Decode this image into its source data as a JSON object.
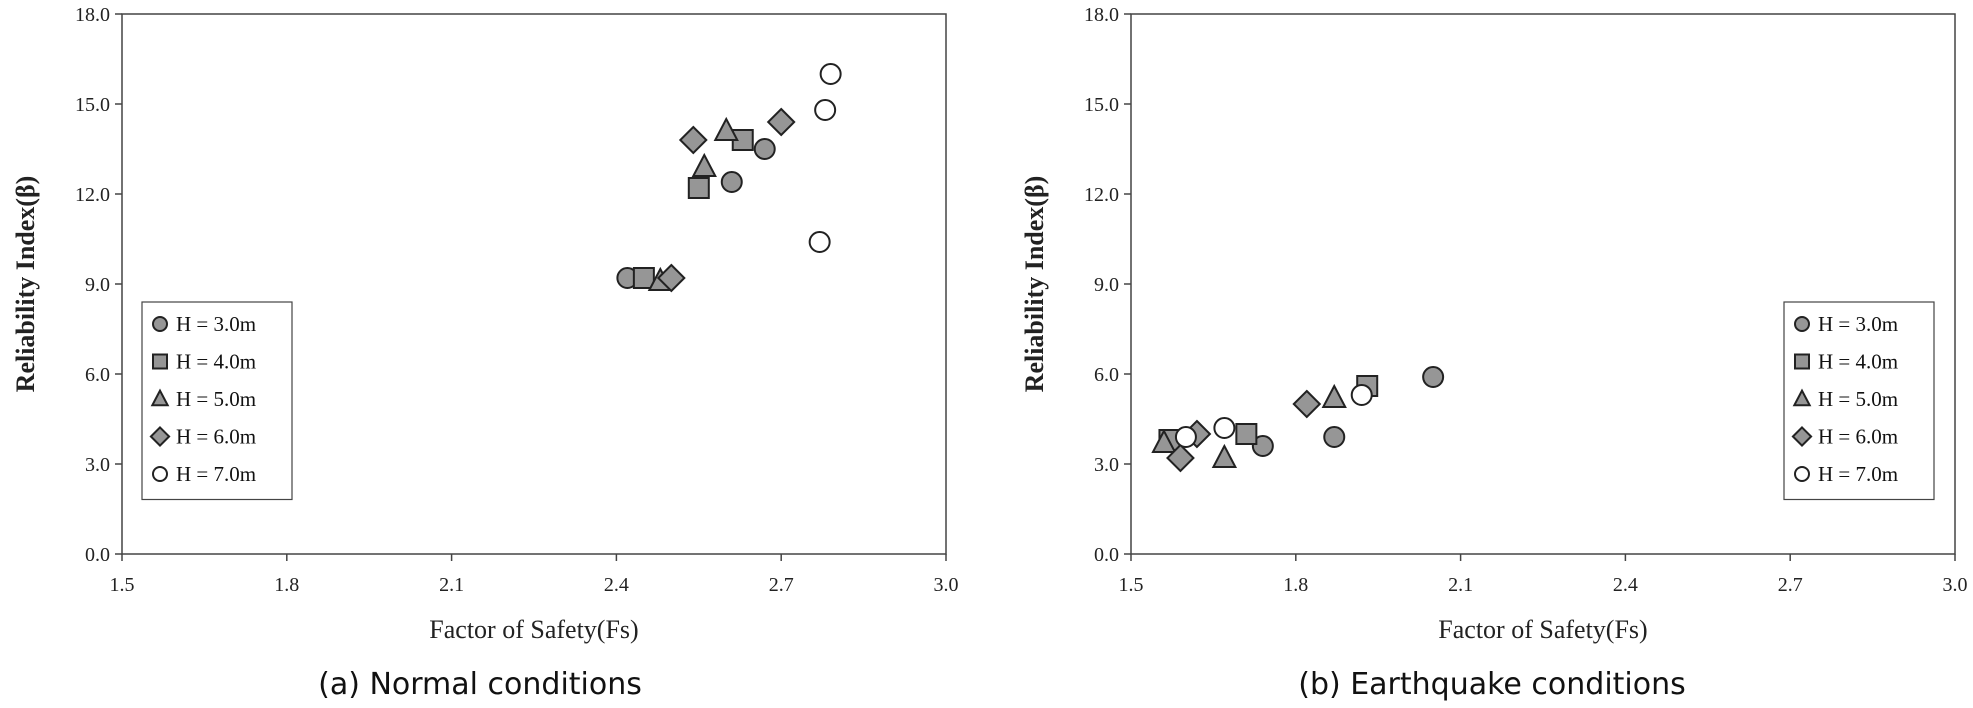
{
  "series_styles": {
    "H = 3.0m": {
      "marker": "circle",
      "fill": "#969696"
    },
    "H = 4.0m": {
      "marker": "square",
      "fill": "#969696"
    },
    "H = 5.0m": {
      "marker": "triangle",
      "fill": "#969696"
    },
    "H = 6.0m": {
      "marker": "diamond",
      "fill": "#969696"
    },
    "H = 7.0m": {
      "marker": "circle",
      "fill": "#ffffff"
    }
  },
  "chart_data": [
    {
      "type": "scatter",
      "caption": "(a) Normal conditions",
      "xlabel": "Factor of Safety(Fs)",
      "ylabel": "Reliability Index(β)",
      "xlim": [
        1.5,
        3.0
      ],
      "ylim": [
        0.0,
        18.0
      ],
      "xticks": [
        "1.5",
        "1.8",
        "2.1",
        "2.4",
        "2.7",
        "3.0"
      ],
      "yticks": [
        "0.0",
        "3.0",
        "6.0",
        "9.0",
        "12.0",
        "15.0",
        "18.0"
      ],
      "grid": false,
      "legend_position": "bottom-left",
      "series": [
        {
          "name": "H = 3.0m",
          "points": [
            [
              2.42,
              9.2
            ],
            [
              2.61,
              12.4
            ],
            [
              2.67,
              13.5
            ]
          ]
        },
        {
          "name": "H = 4.0m",
          "points": [
            [
              2.45,
              9.2
            ],
            [
              2.55,
              12.2
            ],
            [
              2.63,
              13.8
            ]
          ]
        },
        {
          "name": "H = 5.0m",
          "points": [
            [
              2.48,
              9.1
            ],
            [
              2.56,
              12.9
            ],
            [
              2.6,
              14.1
            ]
          ]
        },
        {
          "name": "H = 6.0m",
          "points": [
            [
              2.5,
              9.2
            ],
            [
              2.54,
              13.8
            ],
            [
              2.7,
              14.4
            ]
          ]
        },
        {
          "name": "H = 7.0m",
          "points": [
            [
              2.77,
              10.4
            ],
            [
              2.78,
              14.8
            ],
            [
              2.79,
              16.0
            ]
          ]
        }
      ]
    },
    {
      "type": "scatter",
      "caption": "(b) Earthquake conditions",
      "xlabel": "Factor of Safety(Fs)",
      "ylabel": "Reliability Index(β)",
      "xlim": [
        1.5,
        3.0
      ],
      "ylim": [
        0.0,
        18.0
      ],
      "xticks": [
        "1.5",
        "1.8",
        "2.1",
        "2.4",
        "2.7",
        "3.0"
      ],
      "yticks": [
        "0.0",
        "3.0",
        "6.0",
        "9.0",
        "12.0",
        "15.0",
        "18.0"
      ],
      "grid": false,
      "legend_position": "bottom-right",
      "series": [
        {
          "name": "H = 3.0m",
          "points": [
            [
              1.74,
              3.6
            ],
            [
              1.87,
              3.9
            ],
            [
              2.05,
              5.9
            ]
          ]
        },
        {
          "name": "H = 4.0m",
          "points": [
            [
              1.57,
              3.8
            ],
            [
              1.71,
              4.0
            ],
            [
              1.93,
              5.6
            ]
          ]
        },
        {
          "name": "H = 5.0m",
          "points": [
            [
              1.56,
              3.7
            ],
            [
              1.67,
              3.2
            ],
            [
              1.87,
              5.2
            ]
          ]
        },
        {
          "name": "H = 6.0m",
          "points": [
            [
              1.59,
              3.2
            ],
            [
              1.62,
              4.0
            ],
            [
              1.82,
              5.0
            ]
          ]
        },
        {
          "name": "H = 7.0m",
          "points": [
            [
              1.6,
              3.9
            ],
            [
              1.67,
              4.2
            ],
            [
              1.92,
              5.3
            ]
          ]
        }
      ]
    }
  ]
}
